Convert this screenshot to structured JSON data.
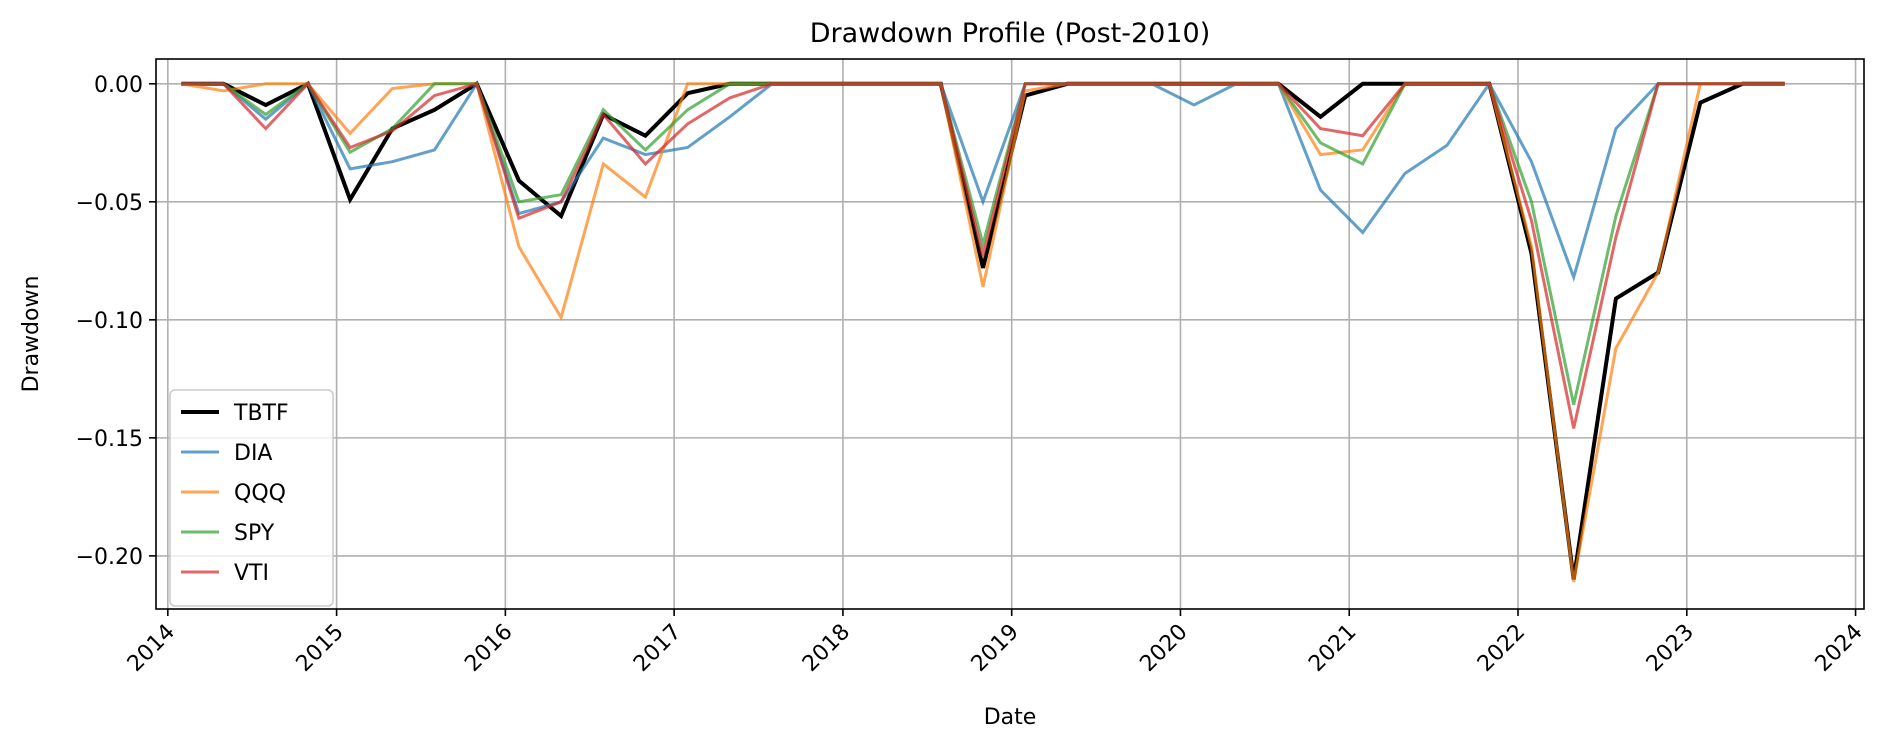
{
  "chart_data": {
    "type": "line",
    "title": "Drawdown Profile (Post-2010)",
    "xlabel": "Date",
    "ylabel": "Drawdown",
    "xlim": [
      2013.93,
      2024.05
    ],
    "ylim": [
      -0.2225,
      0.0105
    ],
    "x_ticks": [
      2014,
      2015,
      2016,
      2017,
      2018,
      2019,
      2020,
      2021,
      2022,
      2023,
      2024
    ],
    "x_tick_labels": [
      "2014",
      "2015",
      "2016",
      "2017",
      "2018",
      "2019",
      "2020",
      "2021",
      "2022",
      "2023",
      "2024"
    ],
    "y_ticks": [
      0.0,
      -0.05,
      -0.1,
      -0.15,
      -0.2
    ],
    "y_tick_labels": [
      "0.00",
      "−0.05",
      "−0.10",
      "−0.15",
      "−0.20"
    ],
    "grid": true,
    "legend_position": "lower-left",
    "x": [
      2014.08,
      2014.33,
      2014.58,
      2014.83,
      2015.08,
      2015.33,
      2015.58,
      2015.83,
      2016.08,
      2016.33,
      2016.58,
      2016.83,
      2017.08,
      2017.33,
      2017.58,
      2017.83,
      2018.08,
      2018.33,
      2018.58,
      2018.83,
      2019.08,
      2019.33,
      2019.58,
      2019.83,
      2020.08,
      2020.33,
      2020.58,
      2020.83,
      2021.08,
      2021.33,
      2021.58,
      2021.83,
      2022.08,
      2022.33,
      2022.58,
      2022.83,
      2023.08,
      2023.33,
      2023.58
    ],
    "series": [
      {
        "name": "TBTF",
        "color": "#000000",
        "width": 4,
        "opacity": 1,
        "values": [
          0,
          0,
          -0.009,
          0,
          -0.049,
          -0.019,
          -0.011,
          0,
          -0.041,
          -0.056,
          -0.013,
          -0.022,
          -0.004,
          0,
          0,
          0,
          0,
          0,
          0,
          -0.078,
          -0.005,
          0,
          0,
          0,
          0,
          0,
          0,
          -0.014,
          0,
          0,
          0,
          0,
          -0.072,
          -0.21,
          -0.091,
          -0.08,
          -0.008,
          0,
          0
        ]
      },
      {
        "name": "DIA",
        "color": "#1f77b4",
        "width": 3,
        "opacity": 0.7,
        "values": [
          0,
          0,
          -0.015,
          0,
          -0.036,
          -0.033,
          -0.028,
          0,
          -0.055,
          -0.05,
          -0.023,
          -0.03,
          -0.027,
          -0.014,
          0,
          0,
          0,
          0,
          0,
          -0.05,
          0,
          0,
          0,
          0,
          -0.009,
          0,
          0,
          -0.045,
          -0.063,
          -0.038,
          -0.026,
          0,
          -0.033,
          -0.082,
          -0.019,
          0,
          0,
          0,
          0
        ]
      },
      {
        "name": "QQQ",
        "color": "#ff7f0e",
        "width": 3,
        "opacity": 0.7,
        "values": [
          0,
          -0.003,
          0,
          0,
          -0.021,
          -0.002,
          0,
          0,
          -0.069,
          -0.099,
          -0.034,
          -0.048,
          0,
          0,
          0,
          0,
          0,
          0,
          0,
          -0.086,
          -0.003,
          0,
          0,
          0,
          0,
          0,
          0,
          -0.03,
          -0.028,
          0,
          0,
          0,
          -0.069,
          -0.211,
          -0.112,
          -0.08,
          0,
          0,
          0
        ]
      },
      {
        "name": "SPY",
        "color": "#2ca02c",
        "width": 3,
        "opacity": 0.7,
        "values": [
          0,
          0,
          -0.013,
          0,
          -0.029,
          -0.019,
          0,
          0,
          -0.05,
          -0.047,
          -0.011,
          -0.028,
          -0.011,
          0,
          0,
          0,
          0,
          0,
          0,
          -0.068,
          0,
          0,
          0,
          0,
          0,
          0,
          0,
          -0.025,
          -0.034,
          0,
          0,
          0,
          -0.05,
          -0.136,
          -0.056,
          0,
          0,
          0,
          0
        ]
      },
      {
        "name": "VTI",
        "color": "#d62728",
        "width": 3,
        "opacity": 0.7,
        "values": [
          0,
          0,
          -0.019,
          0,
          -0.027,
          -0.02,
          -0.005,
          0,
          -0.057,
          -0.05,
          -0.013,
          -0.034,
          -0.017,
          -0.006,
          0,
          0,
          0,
          0,
          0,
          -0.073,
          0,
          0,
          0,
          0,
          0,
          0,
          0,
          -0.019,
          -0.022,
          0,
          0,
          0,
          -0.058,
          -0.146,
          -0.065,
          0,
          0,
          0,
          0
        ]
      }
    ]
  }
}
